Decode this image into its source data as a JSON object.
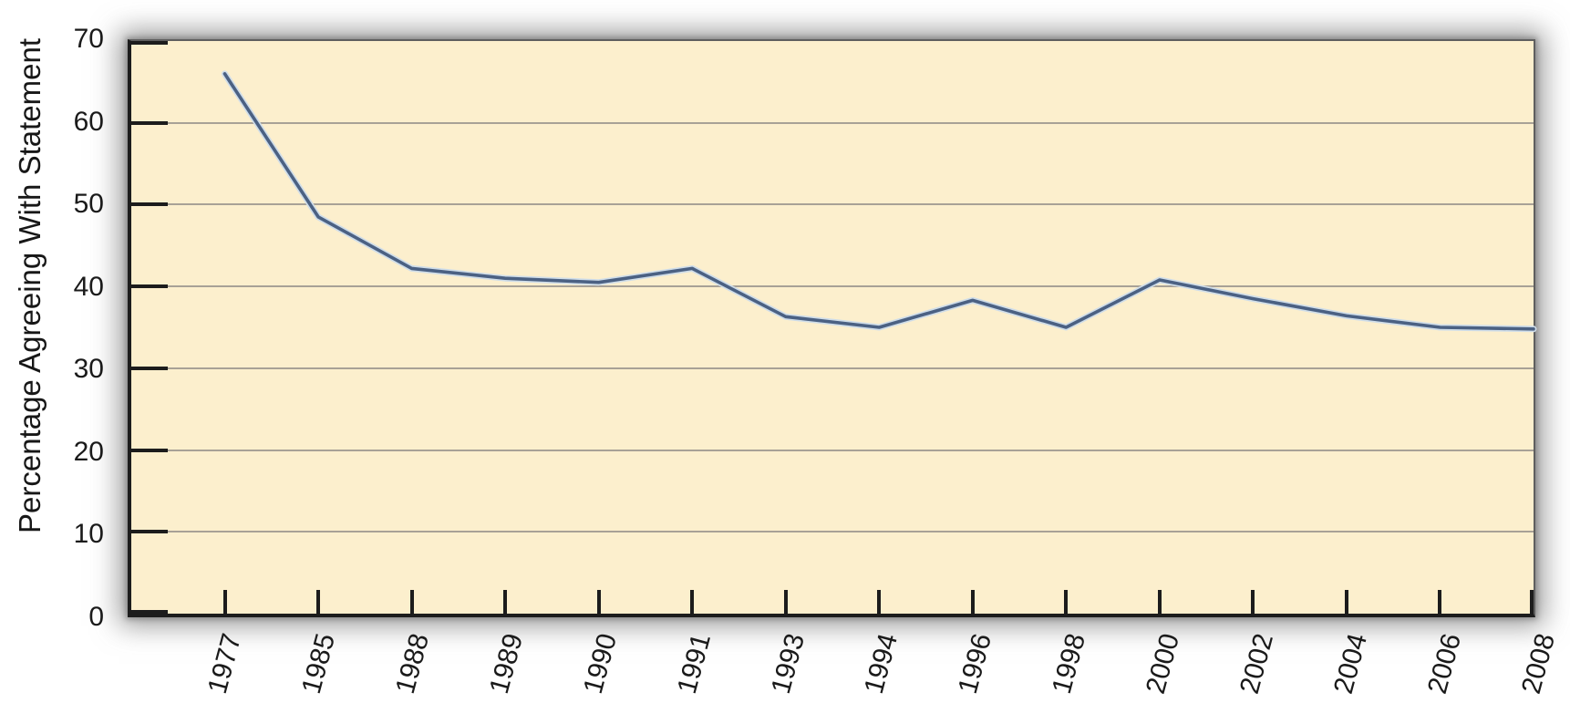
{
  "chart_data": {
    "type": "line",
    "title": "",
    "xlabel": "",
    "ylabel": "Percentage Agreeing With Statement",
    "categories": [
      "1977",
      "1985",
      "1988",
      "1989",
      "1990",
      "1991",
      "1993",
      "1994",
      "1996",
      "1998",
      "2000",
      "2002",
      "2004",
      "2006",
      "2008"
    ],
    "series": [
      {
        "name": "Percentage agreeing with statement",
        "values": [
          66,
          48.5,
          42.2,
          41,
          40.5,
          42.2,
          36.3,
          35,
          38.3,
          35,
          40.8,
          38.5,
          36.4,
          35,
          34.8
        ]
      }
    ],
    "ylim": [
      0,
      70
    ],
    "yticks": [
      0,
      10,
      20,
      30,
      40,
      50,
      60,
      70
    ],
    "grid": "horizontal",
    "legend": "none",
    "colors": {
      "line": "#4b6183",
      "line_halo": "#cfdde9",
      "plot_bg": "#FCEFCD",
      "gridline": "#a8a196",
      "axis": "#1c1c1c",
      "label": "#1a1a1a"
    }
  }
}
